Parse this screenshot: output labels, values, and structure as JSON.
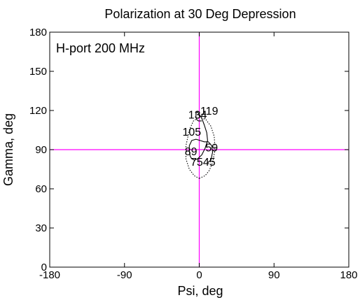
{
  "chart_data": {
    "type": "line",
    "title": "Polarization at 30 Deg Depression",
    "xlabel": "Psi, deg",
    "ylabel": "Gamma, deg",
    "xlim": [
      -180,
      180
    ],
    "ylim": [
      180,
      0
    ],
    "x_ticks": [
      -180,
      -90,
      0,
      90,
      180
    ],
    "y_ticks": [
      0,
      30,
      60,
      90,
      120,
      150,
      180
    ],
    "x_tick_labels": [
      "-180",
      "-90",
      "0",
      "90",
      "180"
    ],
    "y_tick_labels": [
      "0",
      "30",
      "60",
      "90",
      "120",
      "150",
      "180"
    ],
    "grid": false,
    "annotation": "H-port  200 MHz",
    "crosshair": {
      "x": 0,
      "y": 90,
      "color": "#ff00ff"
    },
    "series": [
      {
        "style": "solid",
        "color": "#000000",
        "x": [
          10,
          14,
          16,
          15,
          11,
          6,
          1,
          -4,
          -9,
          -12,
          -12,
          -11,
          -9,
          -6,
          -2,
          3,
          7,
          10,
          9,
          6,
          3,
          0,
          -2,
          -4,
          -4,
          -3,
          -1,
          3
        ],
        "y": [
          80,
          82,
          88,
          93,
          96,
          96,
          97,
          98,
          97,
          93,
          89,
          85,
          83,
          82,
          83,
          86,
          91,
          97,
          103,
          109,
          114,
          117,
          119,
          118,
          115,
          113,
          112,
          112
        ]
      },
      {
        "style": "dotted",
        "color": "#000000",
        "x": [
          0,
          7,
          12,
          16,
          19,
          18,
          14,
          8,
          0,
          -7,
          -12,
          -16,
          -16,
          -12,
          -6,
          0
        ],
        "y": [
          68,
          70,
          74,
          80,
          90,
          100,
          108,
          113,
          115,
          112,
          105,
          93,
          83,
          75,
          70,
          68
        ]
      }
    ],
    "point_labels": [
      {
        "text": "75",
        "x": -3,
        "y": 81
      },
      {
        "text": "45",
        "x": 12,
        "y": 81
      },
      {
        "text": "89",
        "x": -10,
        "y": 89
      },
      {
        "text": "59",
        "x": 15,
        "y": 92
      },
      {
        "text": "105",
        "x": -9,
        "y": 104
      },
      {
        "text": "134",
        "x": -2,
        "y": 117
      },
      {
        "text": "119",
        "x": 12,
        "y": 120
      }
    ]
  }
}
